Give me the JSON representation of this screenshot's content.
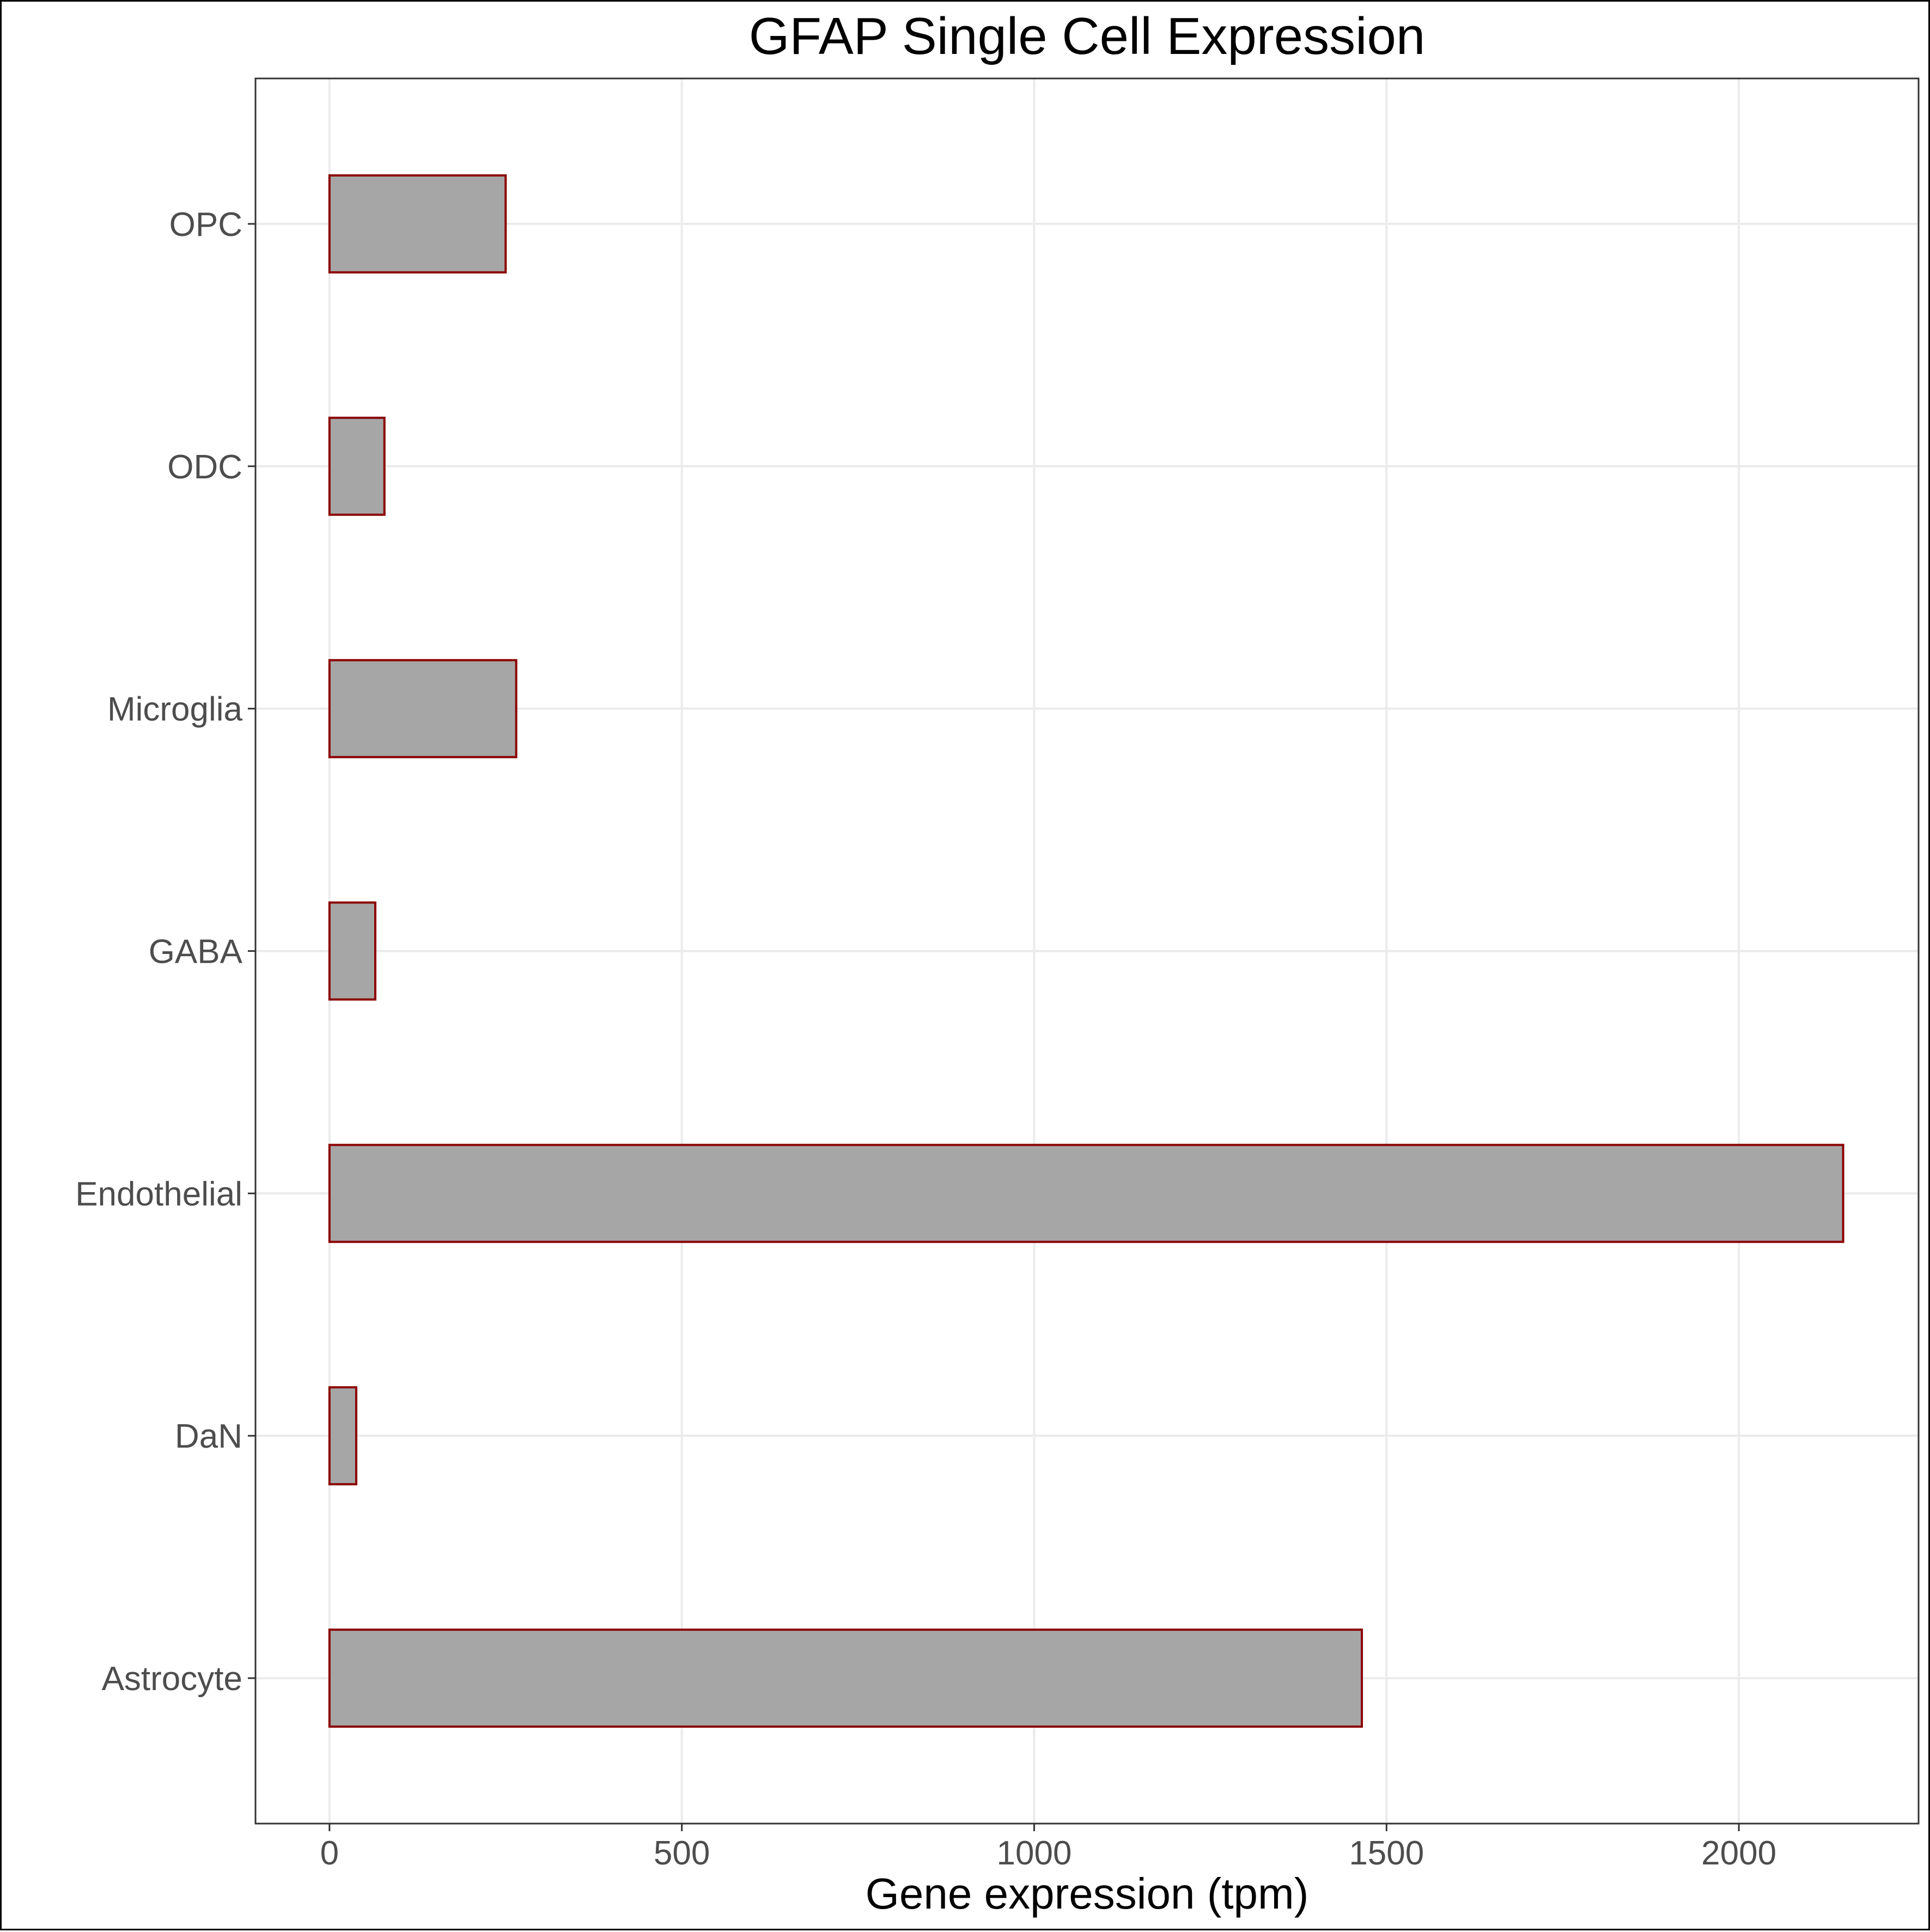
{
  "chart_data": {
    "type": "bar",
    "orientation": "horizontal",
    "title": "GFAP Single Cell Expression",
    "xlabel": "Gene expression (tpm)",
    "ylabel": "",
    "categories": [
      "Astrocyte",
      "DaN",
      "Endothelial",
      "GABA",
      "Microglia",
      "ODC",
      "OPC"
    ],
    "values": [
      1465,
      38,
      2148,
      65,
      265,
      78,
      250
    ],
    "xlim": [
      -105,
      2255
    ],
    "xticks": [
      0,
      500,
      1000,
      1500,
      2000
    ],
    "xtick_labels": [
      "0",
      "500",
      "1000",
      "1500",
      "2000"
    ],
    "grid": true,
    "legend": "none",
    "colors": {
      "bar_fill": "#a6a6a6",
      "bar_outline": "#8b0000",
      "grid": "#ebebeb",
      "panel_border": "#333333",
      "tick_label": "#4d4d4d",
      "title": "#000000"
    }
  }
}
